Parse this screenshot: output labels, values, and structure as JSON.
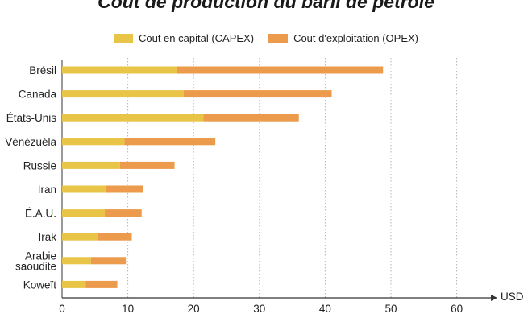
{
  "chart_data": {
    "type": "bar",
    "orientation": "horizontal",
    "stacked": true,
    "title": "Coût de production du baril de pétrole",
    "categories": [
      [
        "Brésil"
      ],
      [
        "Canada"
      ],
      [
        "États-Unis"
      ],
      [
        "Vénézuéla"
      ],
      [
        "Russie"
      ],
      [
        "Iran"
      ],
      [
        "É.A.U."
      ],
      [
        "Irak"
      ],
      [
        "Arabie",
        "saoudite"
      ],
      [
        "Koweït"
      ]
    ],
    "series": [
      {
        "name": "Cout en capital (CAPEX)",
        "color": "#e8c547",
        "values": [
          17.4,
          18.5,
          21.5,
          9.5,
          8.8,
          6.7,
          6.5,
          5.5,
          4.4,
          3.6
        ]
      },
      {
        "name": "Cout d'exploitation (OPEX)",
        "color": "#ec9a4b",
        "values": [
          31.4,
          22.5,
          14.5,
          13.8,
          8.3,
          5.6,
          5.6,
          5.1,
          5.3,
          4.8
        ]
      }
    ],
    "xlim": [
      0,
      65
    ],
    "xticks": [
      "0",
      "10",
      "20",
      "30",
      "40",
      "50",
      "60"
    ],
    "xunit": "USD",
    "grid": "vertical dotted",
    "legend_position": "top"
  }
}
